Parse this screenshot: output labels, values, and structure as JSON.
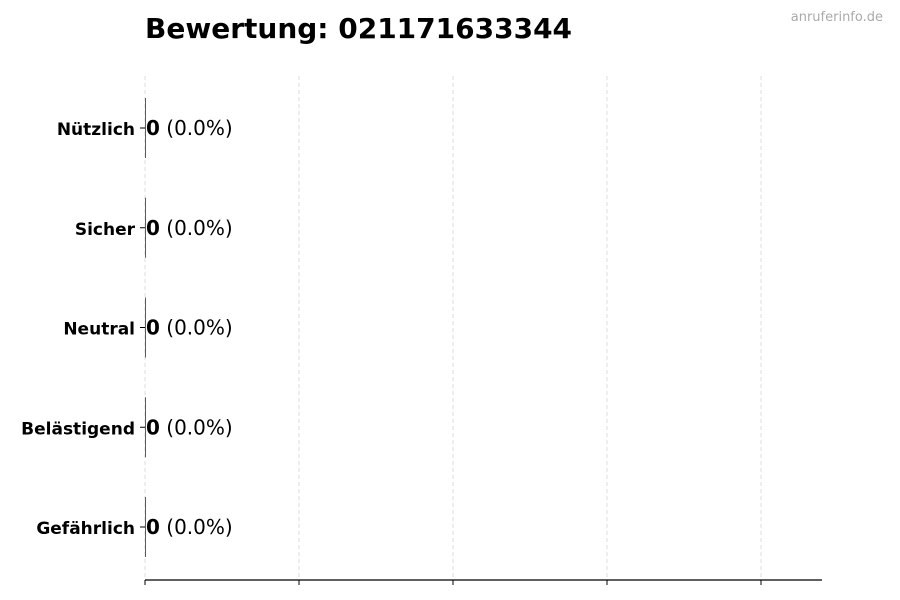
{
  "title": "Bewertung: 021171633344",
  "watermark": "anruferinfo.de",
  "chart_data": {
    "type": "bar",
    "orientation": "horizontal",
    "title": "Bewertung: 021171633344",
    "categories": [
      "Nützlich",
      "Sicher",
      "Neutral",
      "Belästigend",
      "Gefährlich"
    ],
    "values": [
      0,
      0,
      0,
      0,
      0
    ],
    "value_labels": [
      "0",
      "0",
      "0",
      "0",
      "0"
    ],
    "percent_labels": [
      "(0.0%)",
      "(0.0%)",
      "(0.0%)",
      "(0.0%)",
      "(0.0%)"
    ],
    "xlabel": "",
    "ylabel": "",
    "xticks_count": 5,
    "grid": "vertical dashed",
    "colors": {
      "grid": "#dddddd",
      "axis": "#000000",
      "bar_edge": "#333333"
    }
  }
}
